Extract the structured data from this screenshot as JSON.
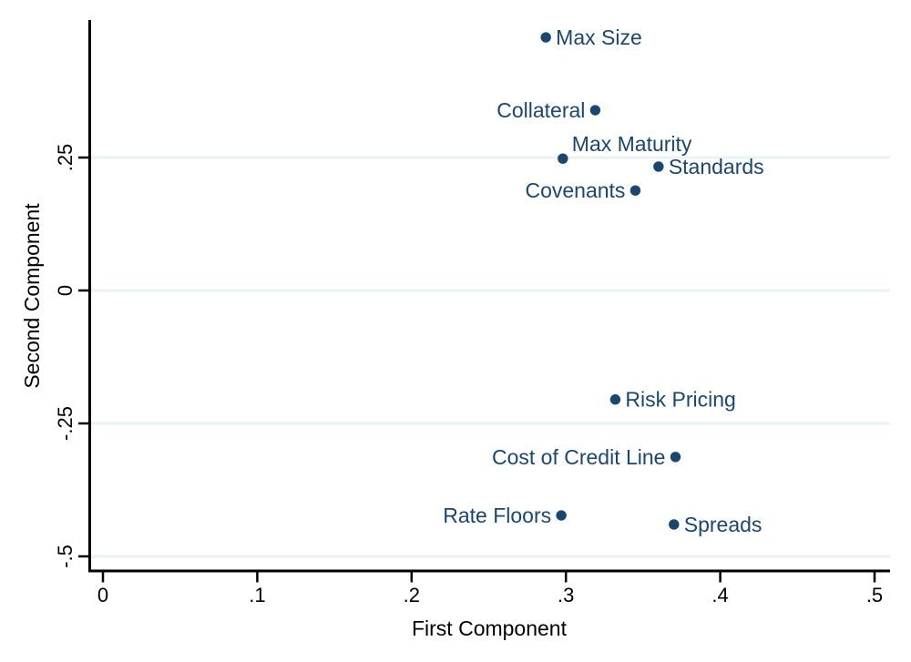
{
  "figure": {
    "background_color": "#ffffff",
    "marker_color": "#1a476f",
    "point_label_color": "#1a476f",
    "axis_color": "#000000",
    "tick_label_color": "#000000",
    "grid_color": "#eaf2f3"
  },
  "chart_data": {
    "type": "scatter",
    "xlabel": "First Component",
    "ylabel": "Second Component",
    "xlim": [
      -0.01,
      0.51
    ],
    "ylim": [
      -0.53,
      0.51
    ],
    "grid": "horizontal-only",
    "legend": "none",
    "x_ticks": [
      0,
      0.1,
      0.2,
      0.3,
      0.4,
      0.5
    ],
    "x_tick_labels": [
      "0",
      ".1",
      ".2",
      ".3",
      ".4",
      ".5"
    ],
    "y_ticks": [
      0.25,
      0,
      -0.25,
      -0.5
    ],
    "y_tick_labels": [
      ".25",
      "0",
      "-.25",
      "-.5"
    ],
    "points": [
      {
        "label": "Max Size",
        "x": 0.287,
        "y": 0.476,
        "label_side": "right"
      },
      {
        "label": "Collateral",
        "x": 0.319,
        "y": 0.339,
        "label_side": "left"
      },
      {
        "label": "Max Maturity",
        "x": 0.298,
        "y": 0.248,
        "label_side": "above-right"
      },
      {
        "label": "Standards",
        "x": 0.36,
        "y": 0.233,
        "label_side": "right"
      },
      {
        "label": "Covenants",
        "x": 0.345,
        "y": 0.188,
        "label_side": "left"
      },
      {
        "label": "Risk Pricing",
        "x": 0.332,
        "y": -0.205,
        "label_side": "right"
      },
      {
        "label": "Cost of Credit Line",
        "x": 0.371,
        "y": -0.313,
        "label_side": "left"
      },
      {
        "label": "Rate Floors",
        "x": 0.297,
        "y": -0.423,
        "label_side": "left"
      },
      {
        "label": "Spreads",
        "x": 0.37,
        "y": -0.44,
        "label_side": "right"
      }
    ]
  }
}
